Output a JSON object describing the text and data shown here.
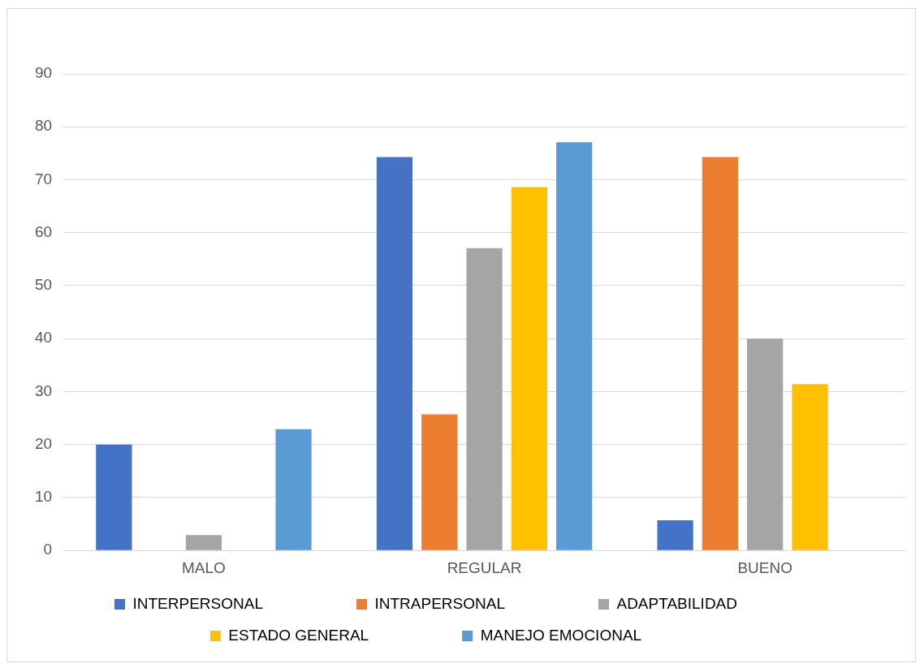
{
  "chart_data": {
    "type": "bar",
    "categories": [
      "MALO",
      "REGULAR",
      "BUENO"
    ],
    "series": [
      {
        "name": "INTERPERSONAL",
        "color": "#4472c4",
        "values": [
          20,
          74.3,
          5.7
        ]
      },
      {
        "name": "INTRAPERSONAL",
        "color": "#ed7d31",
        "values": [
          0,
          25.7,
          74.3
        ]
      },
      {
        "name": "ADAPTABILIDAD",
        "color": "#a5a5a5",
        "values": [
          2.9,
          57.1,
          40
        ]
      },
      {
        "name": "ESTADO GENERAL",
        "color": "#ffc000",
        "values": [
          0,
          68.6,
          31.4
        ]
      },
      {
        "name": "MANEJO EMOCIONAL",
        "color": "#5b9bd5",
        "values": [
          22.9,
          77.1,
          0
        ]
      }
    ],
    "ylim": [
      0,
      90
    ],
    "yticks": [
      0,
      10,
      20,
      30,
      40,
      50,
      60,
      70,
      80,
      90
    ],
    "grid": "y",
    "legend": "bottom"
  }
}
